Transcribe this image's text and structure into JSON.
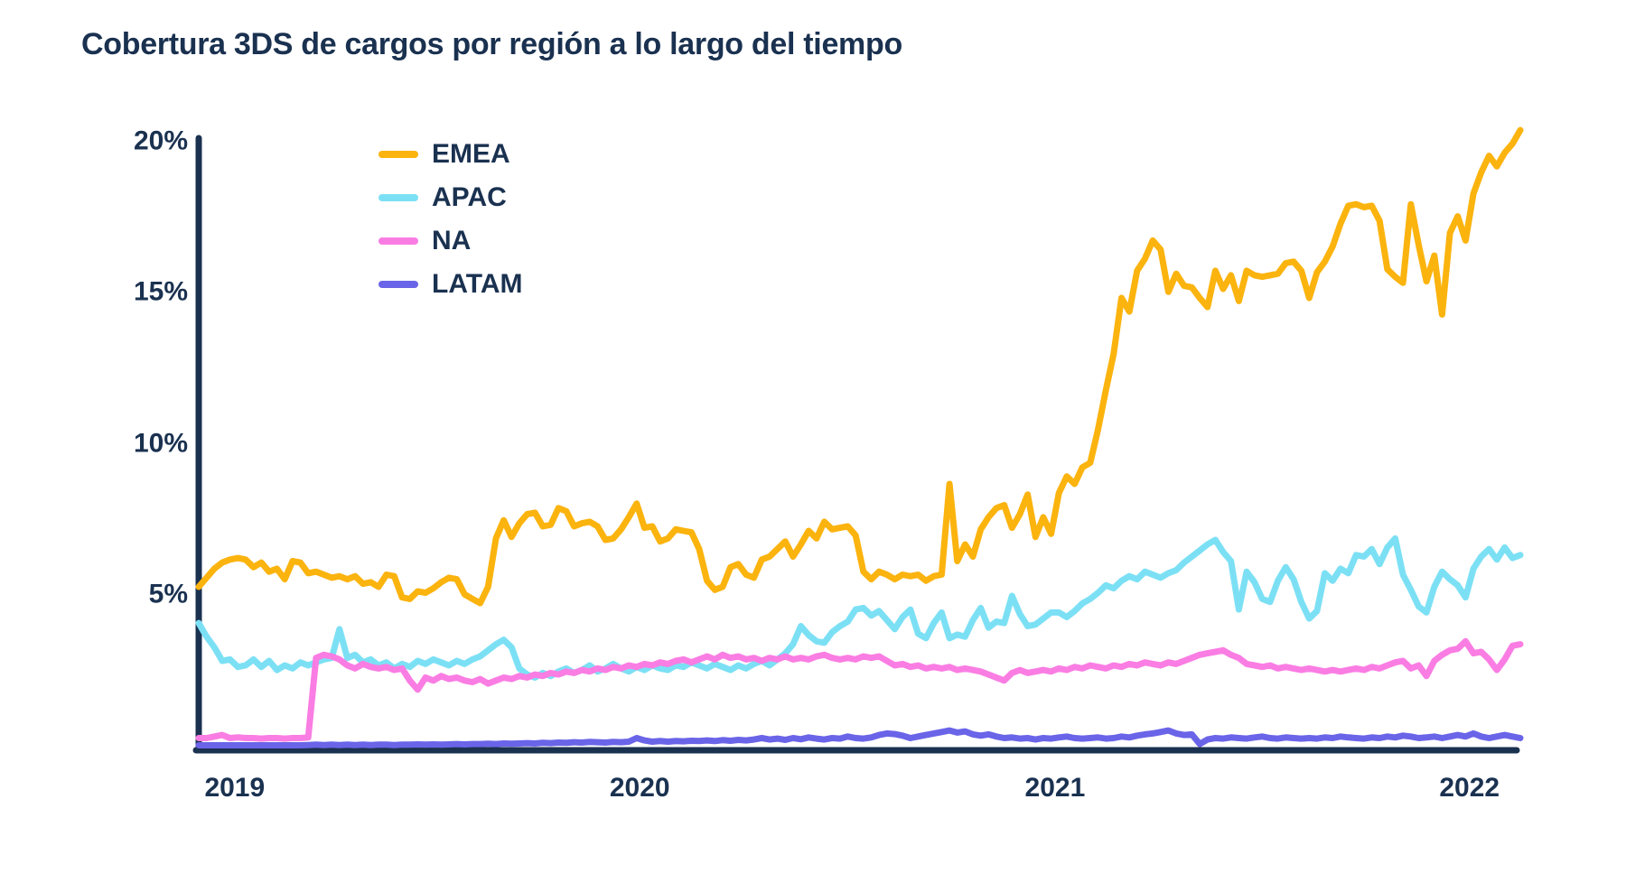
{
  "title": "Cobertura 3DS de cargos por región a lo largo del tiempo",
  "colors": {
    "text_navy": "#1A3150",
    "axis_navy": "#1A3150",
    "emea": "#FBB30E",
    "apac": "#7CE0F5",
    "na": "#FA7DE3",
    "latam": "#6A64E8"
  },
  "chart_data": {
    "type": "line",
    "title": "Cobertura 3DS de cargos por región a lo largo del tiempo",
    "xlabel": "",
    "ylabel": "",
    "x_unit": "weekly, late Nov 2018 - mid Feb 2022",
    "ylim": [
      0,
      20.5
    ],
    "grid": false,
    "legend_position": "top-left-inside",
    "y_ticks": [
      {
        "label": "20%",
        "value": 20
      },
      {
        "label": "15%",
        "value": 15
      },
      {
        "label": "10%",
        "value": 10
      },
      {
        "label": "5%",
        "value": 5
      }
    ],
    "x_ticks": [
      {
        "label": "2019",
        "week": 4.6
      },
      {
        "label": "2020",
        "week": 56.4
      },
      {
        "label": "2021",
        "week": 109.5
      },
      {
        "label": "2022",
        "week": 162.5
      }
    ],
    "series": [
      {
        "name": "EMEA",
        "color": "#FBB30E",
        "values": [
          5.3,
          5.6,
          5.9,
          6.1,
          6.2,
          6.25,
          6.2,
          5.95,
          6.1,
          5.8,
          5.9,
          5.55,
          6.15,
          6.1,
          5.75,
          5.8,
          5.7,
          5.6,
          5.65,
          5.55,
          5.65,
          5.4,
          5.45,
          5.3,
          5.7,
          5.65,
          4.95,
          4.9,
          5.15,
          5.1,
          5.25,
          5.45,
          5.6,
          5.55,
          5.05,
          4.9,
          4.76,
          5.3,
          6.9,
          7.5,
          6.95,
          7.4,
          7.7,
          7.75,
          7.3,
          7.35,
          7.9,
          7.8,
          7.3,
          7.4,
          7.45,
          7.3,
          6.85,
          6.9,
          7.2,
          7.6,
          8.05,
          7.25,
          7.3,
          6.8,
          6.9,
          7.2,
          7.15,
          7.1,
          6.55,
          5.5,
          5.2,
          5.3,
          5.95,
          6.05,
          5.7,
          5.6,
          6.2,
          6.3,
          6.55,
          6.8,
          6.3,
          6.7,
          7.15,
          6.9,
          7.45,
          7.2,
          7.25,
          7.3,
          7.0,
          5.8,
          5.55,
          5.8,
          5.7,
          5.55,
          5.7,
          5.65,
          5.7,
          5.5,
          5.65,
          5.7,
          8.7,
          6.15,
          6.7,
          6.3,
          7.2,
          7.6,
          7.9,
          8.0,
          7.25,
          7.7,
          8.35,
          6.95,
          7.6,
          7.05,
          8.4,
          8.95,
          8.7,
          9.25,
          9.4,
          10.5,
          11.8,
          13.0,
          14.85,
          14.4,
          15.75,
          16.15,
          16.75,
          16.45,
          15.05,
          15.65,
          15.25,
          15.2,
          14.85,
          14.55,
          15.75,
          15.15,
          15.6,
          14.75,
          15.75,
          15.6,
          15.55,
          15.6,
          15.65,
          16.0,
          16.05,
          15.75,
          14.85,
          15.7,
          16.05,
          16.55,
          17.3,
          17.9,
          17.95,
          17.85,
          17.9,
          17.4,
          15.8,
          15.55,
          15.35,
          17.95,
          16.6,
          15.4,
          16.25,
          14.3,
          17.0,
          17.55,
          16.75,
          18.3,
          19.0,
          19.55,
          19.2,
          19.65,
          19.95,
          20.4
        ]
      },
      {
        "name": "APAC",
        "color": "#7CE0F5",
        "values": [
          4.1,
          3.65,
          3.3,
          2.85,
          2.9,
          2.65,
          2.7,
          2.9,
          2.65,
          2.85,
          2.55,
          2.7,
          2.6,
          2.8,
          2.7,
          2.8,
          2.9,
          2.95,
          3.9,
          2.95,
          3.05,
          2.8,
          2.9,
          2.7,
          2.8,
          2.6,
          2.75,
          2.65,
          2.85,
          2.75,
          2.9,
          2.8,
          2.7,
          2.85,
          2.75,
          2.9,
          3.0,
          3.2,
          3.4,
          3.55,
          3.3,
          2.6,
          2.4,
          2.3,
          2.45,
          2.35,
          2.5,
          2.6,
          2.45,
          2.55,
          2.7,
          2.5,
          2.6,
          2.75,
          2.6,
          2.5,
          2.65,
          2.55,
          2.7,
          2.6,
          2.55,
          2.7,
          2.65,
          2.8,
          2.7,
          2.6,
          2.75,
          2.65,
          2.55,
          2.7,
          2.6,
          2.75,
          2.85,
          2.7,
          2.9,
          3.1,
          3.4,
          4.0,
          3.7,
          3.5,
          3.45,
          3.8,
          4.0,
          4.15,
          4.55,
          4.6,
          4.35,
          4.5,
          4.2,
          3.9,
          4.3,
          4.55,
          3.75,
          3.6,
          4.1,
          4.45,
          3.6,
          3.72,
          3.65,
          4.2,
          4.6,
          3.95,
          4.15,
          4.1,
          5.0,
          4.4,
          4.0,
          4.05,
          4.25,
          4.45,
          4.45,
          4.3,
          4.5,
          4.75,
          4.9,
          5.1,
          5.35,
          5.25,
          5.5,
          5.65,
          5.55,
          5.8,
          5.7,
          5.6,
          5.75,
          5.85,
          6.1,
          6.3,
          6.5,
          6.7,
          6.85,
          6.45,
          6.15,
          4.55,
          5.8,
          5.45,
          4.9,
          4.8,
          5.5,
          5.95,
          5.55,
          4.8,
          4.25,
          4.5,
          5.75,
          5.5,
          5.9,
          5.75,
          6.35,
          6.3,
          6.55,
          6.05,
          6.6,
          6.9,
          5.7,
          5.2,
          4.65,
          4.45,
          5.3,
          5.8,
          5.55,
          5.35,
          4.95,
          5.9,
          6.3,
          6.55,
          6.2,
          6.6,
          6.25,
          6.35
        ]
      },
      {
        "name": "NA",
        "color": "#FA7DE3",
        "values": [
          0.3,
          0.3,
          0.35,
          0.4,
          0.3,
          0.32,
          0.3,
          0.3,
          0.28,
          0.3,
          0.3,
          0.28,
          0.3,
          0.3,
          0.32,
          2.95,
          3.05,
          3.0,
          2.9,
          2.7,
          2.6,
          2.75,
          2.65,
          2.6,
          2.65,
          2.55,
          2.6,
          2.2,
          1.9,
          2.3,
          2.2,
          2.35,
          2.25,
          2.3,
          2.2,
          2.15,
          2.25,
          2.1,
          2.2,
          2.3,
          2.25,
          2.35,
          2.3,
          2.4,
          2.35,
          2.45,
          2.4,
          2.5,
          2.45,
          2.55,
          2.5,
          2.6,
          2.55,
          2.65,
          2.6,
          2.7,
          2.65,
          2.75,
          2.7,
          2.8,
          2.75,
          2.85,
          2.9,
          2.8,
          2.9,
          3.0,
          2.9,
          3.05,
          2.95,
          3.0,
          2.9,
          2.95,
          2.85,
          2.95,
          2.9,
          3.0,
          2.9,
          2.95,
          2.9,
          3.0,
          3.05,
          2.95,
          2.9,
          2.95,
          2.9,
          3.0,
          2.95,
          3.0,
          2.85,
          2.7,
          2.75,
          2.65,
          2.7,
          2.6,
          2.65,
          2.6,
          2.65,
          2.55,
          2.6,
          2.55,
          2.5,
          2.4,
          2.3,
          2.2,
          2.45,
          2.55,
          2.45,
          2.5,
          2.55,
          2.5,
          2.6,
          2.55,
          2.65,
          2.6,
          2.7,
          2.65,
          2.6,
          2.7,
          2.65,
          2.75,
          2.7,
          2.8,
          2.75,
          2.7,
          2.8,
          2.75,
          2.85,
          2.95,
          3.05,
          3.1,
          3.15,
          3.2,
          3.05,
          2.95,
          2.75,
          2.7,
          2.65,
          2.7,
          2.6,
          2.65,
          2.6,
          2.55,
          2.6,
          2.55,
          2.5,
          2.55,
          2.5,
          2.55,
          2.6,
          2.55,
          2.65,
          2.6,
          2.7,
          2.8,
          2.85,
          2.6,
          2.7,
          2.35,
          2.85,
          3.05,
          3.2,
          3.25,
          3.5,
          3.1,
          3.15,
          2.9,
          2.55,
          2.9,
          3.35,
          3.4
        ]
      },
      {
        "name": "LATAM",
        "color": "#6A64E8",
        "values": [
          0.06,
          0.06,
          0.06,
          0.06,
          0.06,
          0.06,
          0.06,
          0.06,
          0.06,
          0.06,
          0.06,
          0.06,
          0.06,
          0.06,
          0.07,
          0.08,
          0.07,
          0.08,
          0.07,
          0.08,
          0.07,
          0.08,
          0.07,
          0.08,
          0.08,
          0.07,
          0.08,
          0.08,
          0.09,
          0.08,
          0.09,
          0.08,
          0.09,
          0.1,
          0.09,
          0.1,
          0.1,
          0.11,
          0.1,
          0.12,
          0.11,
          0.12,
          0.13,
          0.12,
          0.14,
          0.13,
          0.15,
          0.14,
          0.16,
          0.15,
          0.17,
          0.16,
          0.15,
          0.17,
          0.16,
          0.18,
          0.3,
          0.22,
          0.18,
          0.2,
          0.18,
          0.2,
          0.19,
          0.21,
          0.2,
          0.22,
          0.2,
          0.23,
          0.21,
          0.24,
          0.22,
          0.25,
          0.3,
          0.25,
          0.28,
          0.24,
          0.3,
          0.26,
          0.32,
          0.28,
          0.25,
          0.3,
          0.28,
          0.35,
          0.3,
          0.28,
          0.32,
          0.4,
          0.45,
          0.43,
          0.38,
          0.3,
          0.35,
          0.4,
          0.45,
          0.5,
          0.55,
          0.48,
          0.52,
          0.42,
          0.38,
          0.42,
          0.35,
          0.3,
          0.32,
          0.28,
          0.3,
          0.25,
          0.3,
          0.28,
          0.32,
          0.35,
          0.3,
          0.28,
          0.3,
          0.32,
          0.28,
          0.3,
          0.35,
          0.32,
          0.38,
          0.42,
          0.45,
          0.5,
          0.55,
          0.45,
          0.4,
          0.42,
          0.1,
          0.25,
          0.3,
          0.28,
          0.32,
          0.3,
          0.28,
          0.32,
          0.35,
          0.3,
          0.28,
          0.32,
          0.3,
          0.28,
          0.3,
          0.28,
          0.32,
          0.3,
          0.35,
          0.32,
          0.3,
          0.28,
          0.32,
          0.3,
          0.35,
          0.32,
          0.38,
          0.35,
          0.3,
          0.32,
          0.35,
          0.3,
          0.35,
          0.4,
          0.35,
          0.45,
          0.35,
          0.3,
          0.35,
          0.4,
          0.35,
          0.3
        ]
      }
    ]
  }
}
